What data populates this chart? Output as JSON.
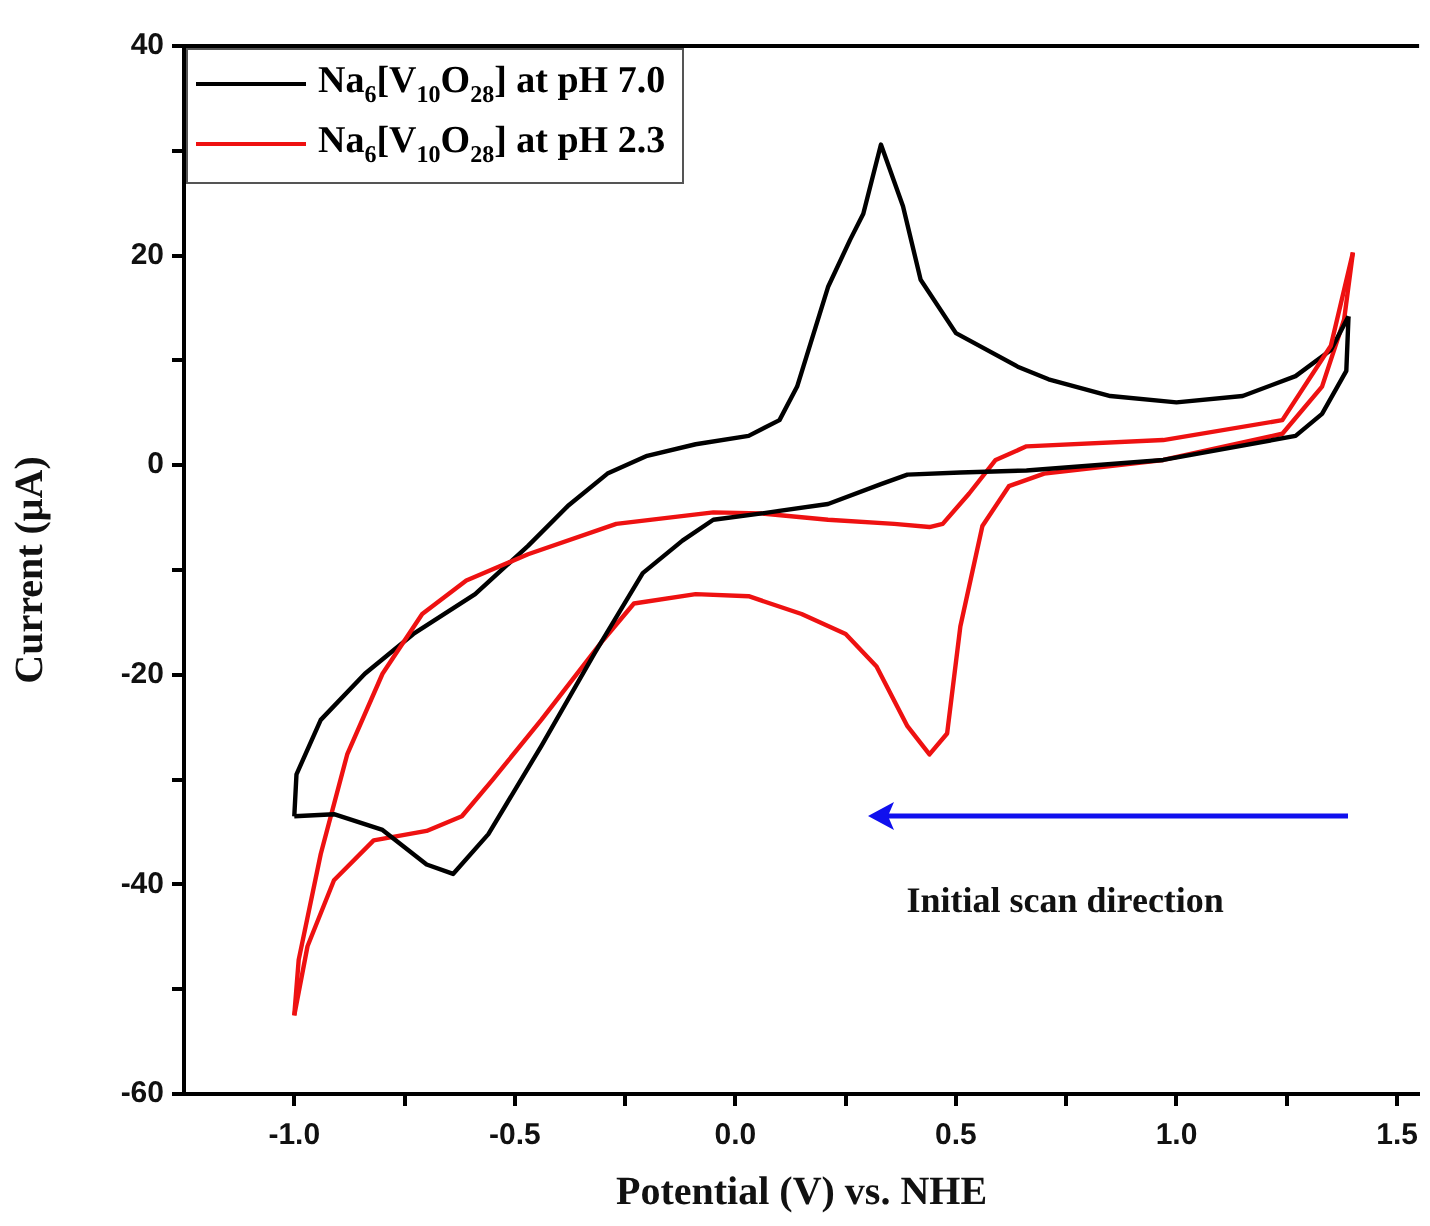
{
  "chart_data": {
    "type": "line",
    "xlabel": "Potential (V) vs. NHE",
    "ylabel": "Current (μA)",
    "xlim": [
      -1.25,
      1.55
    ],
    "xticks": [
      {
        "value": -1.0,
        "label": "-1.0"
      },
      {
        "value": -0.75,
        "label": null
      },
      {
        "value": -0.5,
        "label": "-0.5"
      },
      {
        "value": -0.25,
        "label": null
      },
      {
        "value": 0,
        "label": "0.0"
      },
      {
        "value": 0.25,
        "label": null
      },
      {
        "value": 0.5,
        "label": "0.5"
      },
      {
        "value": 0.75,
        "label": null
      },
      {
        "value": 1.0,
        "label": "1.0"
      },
      {
        "value": 1.25,
        "label": null
      },
      {
        "value": 1.5,
        "label": "1.5"
      }
    ],
    "ylim": [
      -60,
      40
    ],
    "yticks": [
      -60,
      {
        "value": -50,
        "label": null
      },
      -40,
      {
        "value": -30,
        "label": null
      },
      -20,
      {
        "value": -10,
        "label": null
      },
      0,
      {
        "value": 10,
        "label": null
      },
      20,
      {
        "value": 30,
        "label": null
      },
      40
    ],
    "grid": false,
    "legend": "top left",
    "marker": "none",
    "line_style": "solid",
    "annotations": [
      "Initial scan direction"
    ],
    "series": [
      {
        "name": "Na$_{6}$[V$_{10}$O$_{28}$] at pH 7.0",
        "color": "#000000",
        "x": [
          1.39,
          1.385,
          1.33,
          1.27,
          0.97,
          0.66,
          0.51,
          0.39,
          0.33,
          0.21,
          0.06,
          -0.05,
          -0.12,
          -0.21,
          -0.32,
          -0.44,
          -0.56,
          -0.64,
          -0.7,
          -0.8,
          -0.91,
          -1.0
        ],
        "values": [
          14.2,
          9,
          4.9,
          2.8,
          0.5,
          -0.5,
          -0.7,
          -0.9,
          -1.8,
          -3.7,
          -4.6,
          -5.2,
          -7.2,
          -10.3,
          -18,
          -26.8,
          -35.2,
          -39,
          -38.1,
          -34.8,
          -33.3,
          -33.5
        ]
      },
      {
        "name": "Na$_{6}$[V$_{10}$O$_{28}$] at pH 2.3",
        "color": "#ee1111",
        "x": [
          1.4,
          1.35,
          1.24,
          0.97,
          0.66,
          0.59,
          0.53,
          0.47,
          0.44,
          0.36,
          0.21,
          0.06,
          -0.05,
          -0.27,
          -0.47,
          -0.61,
          -0.71,
          -0.8,
          -0.88,
          -0.94,
          -0.99,
          -1.0
        ],
        "values": [
          20.3,
          11.4,
          4.3,
          2.4,
          1.8,
          0.5,
          -2.7,
          -5.6,
          -5.9,
          -5.6,
          -5.2,
          -4.6,
          -4.5,
          -5.6,
          -8.5,
          -11,
          -14.2,
          -19.9,
          -27.6,
          -37.1,
          -47.2,
          -52.5
        ]
      },
      {
        "color": "#000000",
        "x": [
          -1.0,
          -0.995,
          -0.94,
          -0.84,
          -0.73,
          -0.59,
          -0.47,
          -0.38,
          -0.29,
          -0.2,
          -0.09,
          0.03,
          0.1,
          0.14,
          0.21,
          0.26,
          0.29,
          0.33,
          0.38,
          0.42,
          0.5,
          0.64,
          0.71,
          0.85,
          1.0,
          1.15,
          1.27,
          1.35,
          1.39
        ],
        "values": [
          -33.5,
          -29.5,
          -24.3,
          -19.9,
          -16.1,
          -12.3,
          -7.7,
          -3.9,
          -0.8,
          0.9,
          2.0,
          2.8,
          4.3,
          7.5,
          17,
          21.5,
          24,
          30.6,
          24.7,
          17.7,
          12.6,
          9.4,
          8.2,
          6.6,
          6.0,
          6.6,
          8.5,
          11,
          14.2
        ]
      },
      {
        "color": "#ee1111",
        "x": [
          -1.0,
          -0.97,
          -0.91,
          -0.82,
          -0.7,
          -0.62,
          -0.55,
          -0.44,
          -0.3,
          -0.23,
          -0.09,
          0.03,
          0.15,
          0.25,
          0.32,
          0.39,
          0.44,
          0.48,
          0.51,
          0.56,
          0.62,
          0.7,
          0.97,
          1.24,
          1.33,
          1.38,
          1.4
        ],
        "values": [
          -52.5,
          -45.9,
          -39.6,
          -35.8,
          -34.9,
          -33.5,
          -30,
          -24.3,
          -16.7,
          -13.2,
          -12.3,
          -12.5,
          -14.2,
          -16.1,
          -19.2,
          -24.9,
          -27.6,
          -25.6,
          -15.4,
          -5.8,
          -2,
          -0.8,
          0.5,
          3,
          7.5,
          13.9,
          20.3
        ]
      }
    ]
  }
}
